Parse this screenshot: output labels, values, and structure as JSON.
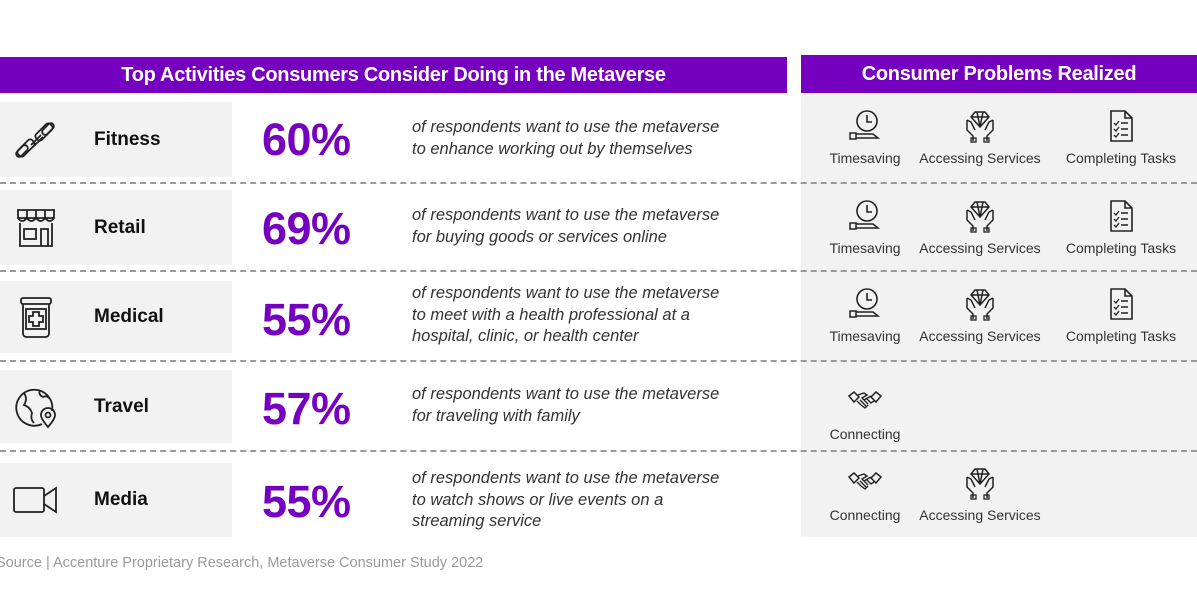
{
  "headers": {
    "left": "Top Activities Consumers Consider Doing in the Metaverse",
    "right": "Consumer Problems Realized"
  },
  "colors": {
    "accent": "#7500c0",
    "panel": "#f2f2f2",
    "dash": "#9a9a9a"
  },
  "activities": [
    {
      "label": "Fitness",
      "icon": "dumbbell-icon",
      "percent": "60%",
      "description": [
        "of respondents want to use the metaverse",
        "to enhance working out by themselves"
      ],
      "problems": [
        {
          "label": "Timesaving",
          "icon": "clock-hand-icon"
        },
        {
          "label": "Accessing Services",
          "icon": "diamond-hands-icon"
        },
        {
          "label": "Completing Tasks",
          "icon": "checklist-icon"
        }
      ]
    },
    {
      "label": "Retail",
      "icon": "storefront-icon",
      "percent": "69%",
      "description": [
        "of respondents want to use the metaverse",
        "for buying goods or services online"
      ],
      "problems": [
        {
          "label": "Timesaving",
          "icon": "clock-hand-icon"
        },
        {
          "label": "Accessing Services",
          "icon": "diamond-hands-icon"
        },
        {
          "label": "Completing Tasks",
          "icon": "checklist-icon"
        }
      ]
    },
    {
      "label": "Medical",
      "icon": "medicine-jar-icon",
      "percent": "55%",
      "description": [
        "of respondents want to use the metaverse",
        "to meet with a health professional at a",
        "hospital, clinic, or health center"
      ],
      "problems": [
        {
          "label": "Timesaving",
          "icon": "clock-hand-icon"
        },
        {
          "label": "Accessing Services",
          "icon": "diamond-hands-icon"
        },
        {
          "label": "Completing Tasks",
          "icon": "checklist-icon"
        }
      ]
    },
    {
      "label": "Travel",
      "icon": "globe-pin-icon",
      "percent": "57%",
      "description": [
        "of respondents want to use the metaverse",
        "for traveling with family"
      ],
      "problems": [
        {
          "label": "Connecting",
          "icon": "handshake-icon"
        }
      ]
    },
    {
      "label": "Media",
      "icon": "video-camera-icon",
      "percent": "55%",
      "description": [
        "of respondents want to use the metaverse",
        "to watch shows or live events on a",
        "streaming service"
      ],
      "problems": [
        {
          "label": "Connecting",
          "icon": "handshake-icon"
        },
        {
          "label": "Accessing Services",
          "icon": "diamond-hands-icon"
        }
      ]
    }
  ],
  "source": "Source | Accenture Proprietary Research, Metaverse Consumer Study 2022"
}
